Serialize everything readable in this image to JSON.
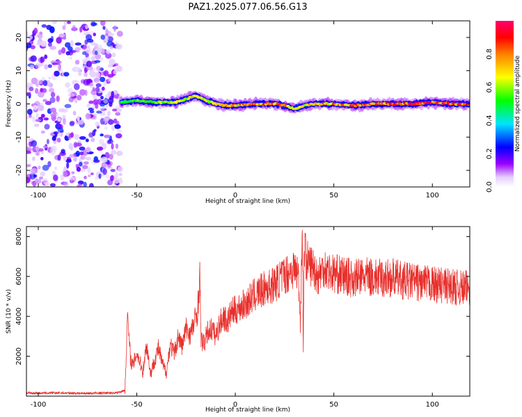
{
  "title": "PAZ1.2025.077.06.56.G13",
  "chart_data": [
    {
      "type": "heatmap",
      "xlabel": "Height of straight line (km)",
      "ylabel": "Frequency (Hz)",
      "xlim": [
        -106,
        119
      ],
      "ylim": [
        -25,
        25
      ],
      "xticks": [
        -100,
        -50,
        0,
        50,
        100
      ],
      "yticks": [
        -20,
        -10,
        0,
        10,
        20
      ],
      "colorbar": {
        "label": "Normalized spectral amplitude",
        "range": [
          0,
          1
        ],
        "ticks": [
          "0.0",
          "0.2",
          "0.4",
          "0.6",
          "0.8"
        ]
      },
      "noise_region_x": [
        -106,
        -58
      ],
      "ridge": {
        "x": [
          -58,
          -50,
          -40,
          -30,
          -25,
          -20,
          -15,
          -10,
          -5,
          0,
          10,
          20,
          25,
          30,
          35,
          40,
          50,
          60,
          70,
          80,
          90,
          100,
          110,
          119
        ],
        "freq": [
          0.5,
          1.0,
          0.5,
          0.5,
          1.5,
          2.5,
          1.0,
          0.0,
          -0.5,
          -0.5,
          0.0,
          0.0,
          -0.5,
          -1.5,
          -0.5,
          0.0,
          0.0,
          -0.5,
          0.0,
          0.0,
          0.0,
          0.5,
          0.0,
          0.0
        ],
        "amplitude": [
          0.25,
          0.4,
          0.45,
          0.5,
          0.55,
          0.6,
          0.55,
          0.6,
          0.7,
          0.75,
          0.8,
          0.85,
          0.95,
          0.6,
          0.65,
          0.7,
          0.8,
          0.85,
          0.9,
          0.95,
          0.95,
          0.95,
          0.95,
          0.95
        ]
      }
    },
    {
      "type": "line",
      "xlabel": "Height of straight line (km)",
      "ylabel": "SNR (10 * v/v)",
      "xlim": [
        -106,
        119
      ],
      "ylim": [
        0,
        8500
      ],
      "xticks": [
        -100,
        -50,
        0,
        50,
        100
      ],
      "yticks": [
        2000,
        4000,
        6000,
        8000
      ],
      "series": [
        {
          "color": "#e8302c",
          "x": [
            -106,
            -90,
            -75,
            -60,
            -56,
            -55,
            -54.5,
            -54,
            -53,
            -52,
            -50,
            -48,
            -47,
            -45,
            -43,
            -41,
            -39,
            -37,
            -35,
            -33,
            -31,
            -29,
            -27,
            -25,
            -23,
            -21,
            -19,
            -18,
            -17.5,
            -17,
            -16,
            -14,
            -12,
            -10,
            -8,
            -6,
            -4,
            -2,
            0,
            3,
            6,
            9,
            12,
            15,
            18,
            21,
            24,
            27,
            30,
            32,
            33,
            34,
            34.5,
            35,
            36,
            38,
            40,
            42,
            45,
            48,
            52,
            56,
            60,
            65,
            70,
            75,
            80,
            85,
            90,
            95,
            100,
            105,
            110,
            115,
            119
          ],
          "y": [
            150,
            160,
            140,
            170,
            300,
            3200,
            4200,
            2800,
            1800,
            1500,
            2200,
            1600,
            1200,
            2600,
            1100,
            1800,
            2400,
            1600,
            1200,
            2600,
            2100,
            3000,
            2500,
            3400,
            3100,
            3600,
            4400,
            6200,
            3000,
            2800,
            2600,
            3200,
            3400,
            3000,
            3600,
            4000,
            3700,
            4200,
            4300,
            4500,
            4700,
            5000,
            5200,
            5400,
            5500,
            5700,
            6000,
            6200,
            6400,
            6100,
            3800,
            8500,
            2500,
            7600,
            6800,
            6600,
            6400,
            6000,
            6500,
            6200,
            6100,
            6000,
            5900,
            6000,
            5950,
            5900,
            5950,
            5800,
            5750,
            5650,
            5600,
            5550,
            5500,
            5400,
            5450
          ]
        }
      ]
    }
  ]
}
